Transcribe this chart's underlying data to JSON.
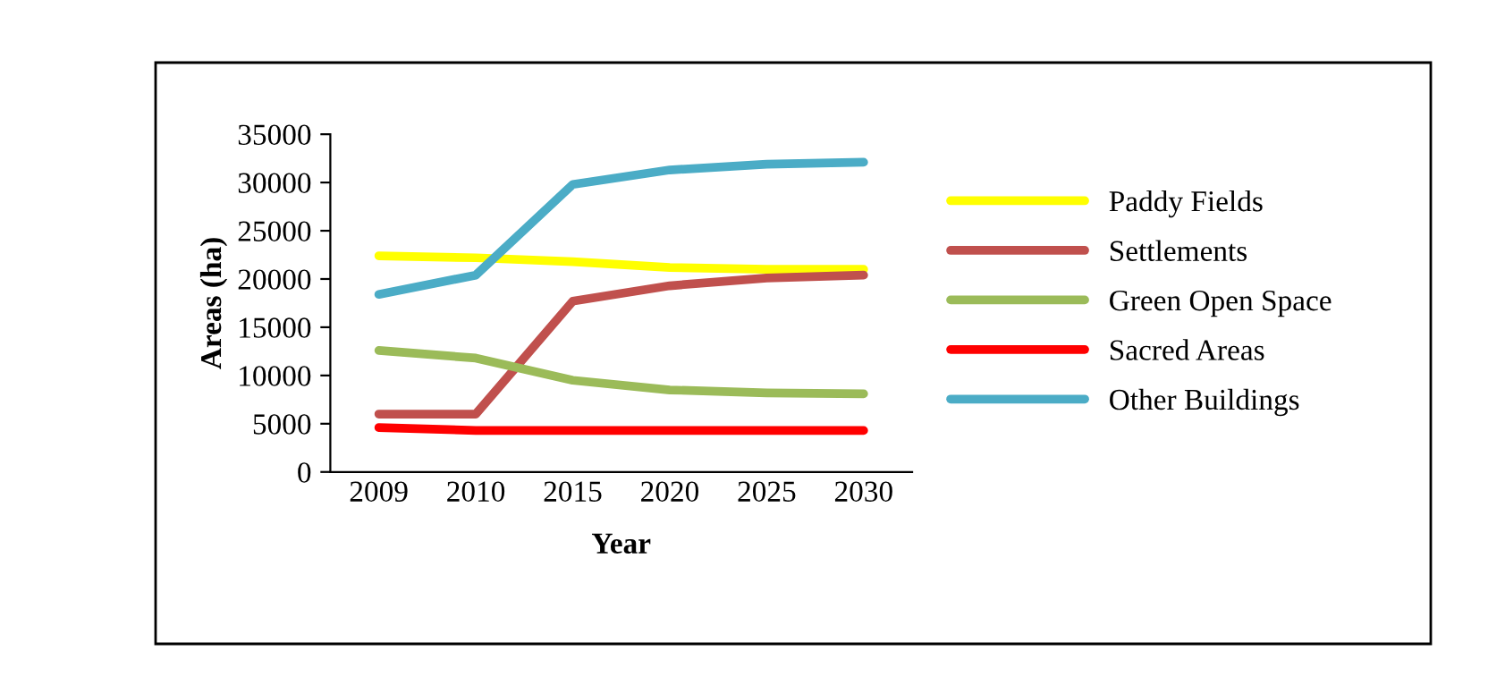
{
  "chart_data": {
    "type": "line",
    "xlabel": "Year",
    "ylabel": "Areas (ha)",
    "categories": [
      "2009",
      "2010",
      "2015",
      "2020",
      "2025",
      "2030"
    ],
    "series": [
      {
        "name": "Paddy Fields",
        "color": "#ffff00",
        "values": [
          22400,
          22200,
          21800,
          21200,
          21000,
          21000
        ]
      },
      {
        "name": "Settlements",
        "color": "#c0504d",
        "values": [
          6000,
          6000,
          17700,
          19300,
          20100,
          20400
        ]
      },
      {
        "name": "Green Open Space",
        "color": "#9bbb59",
        "values": [
          12600,
          11800,
          9500,
          8500,
          8200,
          8100
        ]
      },
      {
        "name": "Sacred Areas",
        "color": "#ff0000",
        "values": [
          4600,
          4300,
          4300,
          4300,
          4300,
          4300
        ]
      },
      {
        "name": "Other Buildings",
        "color": "#4bacc6",
        "values": [
          18400,
          20400,
          29800,
          31300,
          31900,
          32100
        ]
      }
    ],
    "ylim": [
      0,
      35000
    ],
    "yticks": [
      0,
      5000,
      10000,
      15000,
      20000,
      25000,
      30000,
      35000
    ],
    "grid": false,
    "legend": "right",
    "marker": "none",
    "line_style": "solid"
  }
}
